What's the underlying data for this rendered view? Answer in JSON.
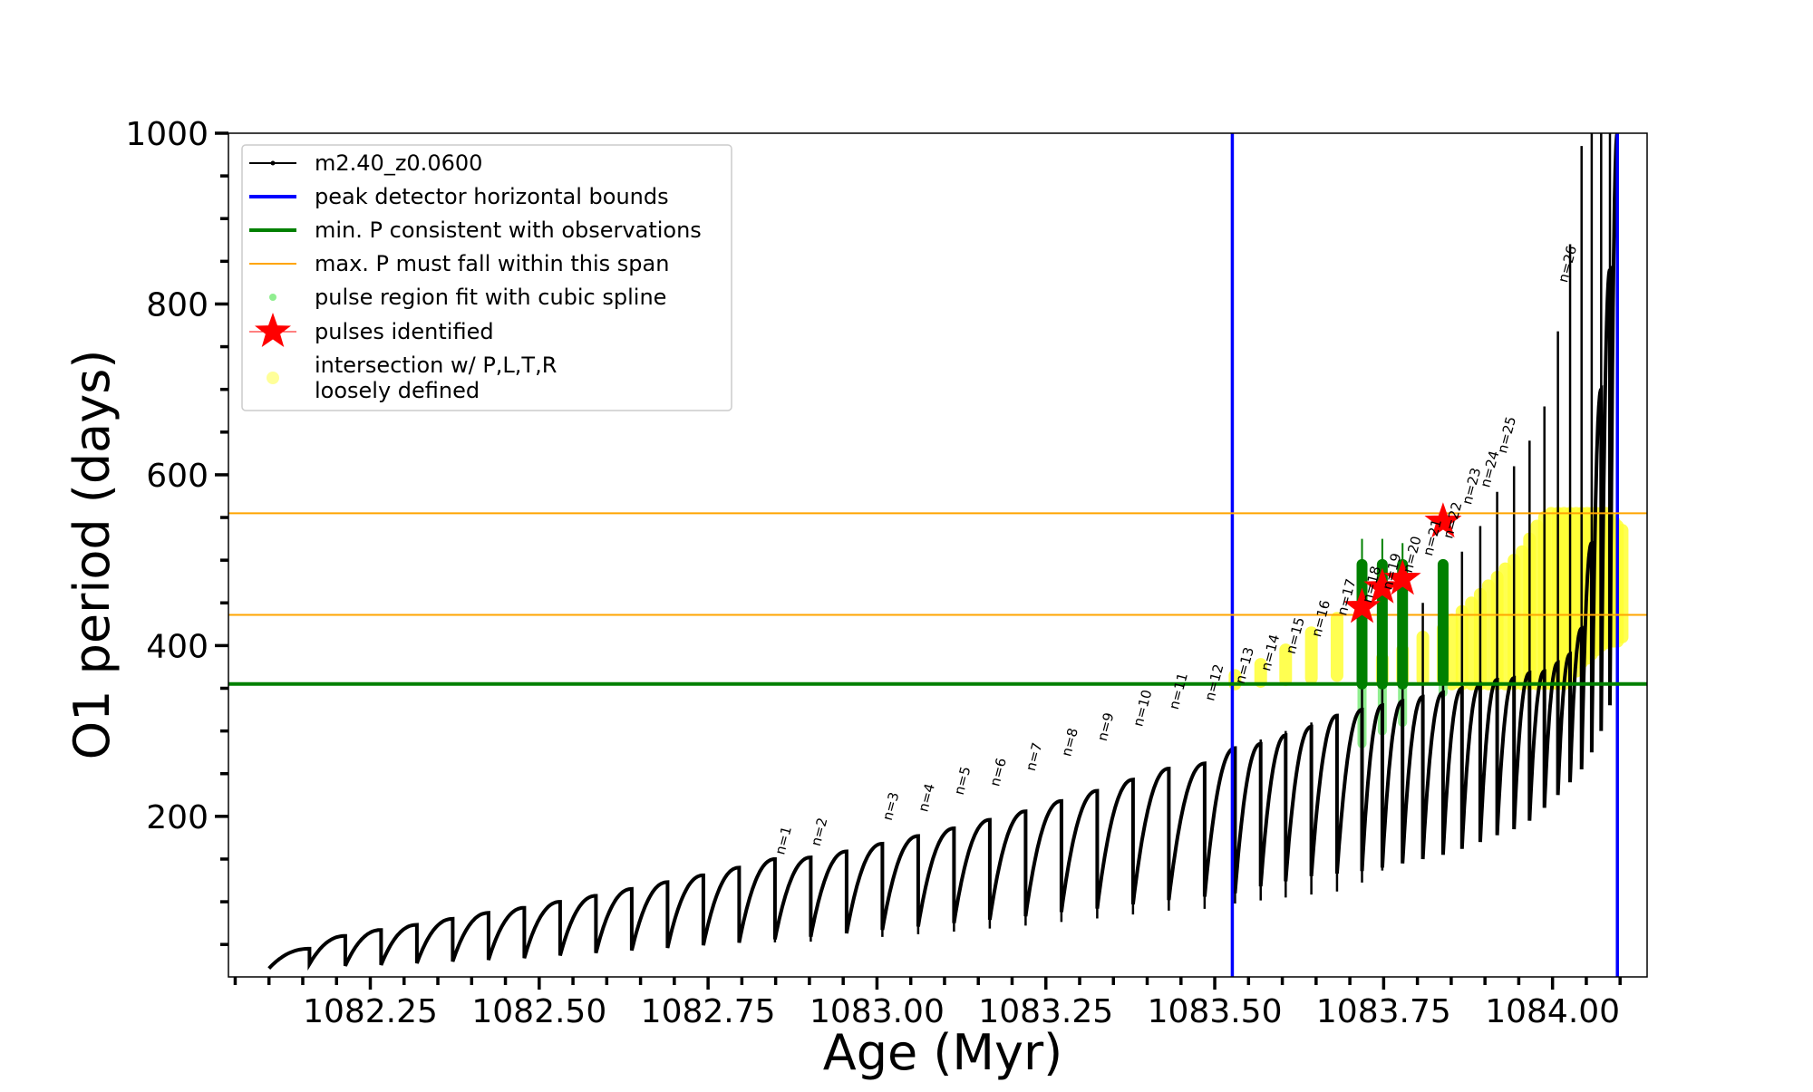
{
  "chart_data": {
    "type": "line",
    "xlabel": "Age (Myr)",
    "ylabel": "O1 period (days)",
    "xlim": [
      1082.04,
      1084.14
    ],
    "ylim": [
      12,
      1000
    ],
    "xticks": [
      1082.25,
      1082.5,
      1082.75,
      1083.0,
      1083.25,
      1083.5,
      1083.75,
      1084.0
    ],
    "xtick_labels": [
      "1082.25",
      "1082.50",
      "1082.75",
      "1083.00",
      "1083.25",
      "1083.50",
      "1083.75",
      "1084.00"
    ],
    "yticks": [
      200,
      400,
      600,
      800,
      1000
    ],
    "ytick_labels": [
      "200",
      "400",
      "600",
      "800",
      "1000"
    ],
    "legend_position": "top-left",
    "legend": [
      {
        "label": "m2.40_z0.0600",
        "color": "#000000",
        "kind": "line-marker"
      },
      {
        "label": "peak detector horizontal bounds",
        "color": "#0000ff",
        "kind": "line"
      },
      {
        "label": "min. P consistent with observations",
        "color": "#008000",
        "kind": "line"
      },
      {
        "label": "max. P must fall within this span",
        "color": "#ffa500",
        "kind": "thin-line"
      },
      {
        "label": "pulse region fit with cubic spline",
        "color": "#90ee90",
        "kind": "dot"
      },
      {
        "label": "pulses identified",
        "color": "#ff0000",
        "kind": "star"
      },
      {
        "label": "intersection w/ P,L,T,R",
        "label2": "loosely defined",
        "color": "#ffff99",
        "kind": "big-dot"
      }
    ],
    "vertical_lines": [
      {
        "x": 1083.526,
        "color": "#0000ff",
        "name": "peak detector horizontal bounds"
      },
      {
        "x": 1084.096,
        "color": "#0000ff",
        "name": "peak detector horizontal bounds"
      }
    ],
    "horizontal_lines": [
      {
        "y": 355,
        "color": "#008000",
        "name": "min. P consistent with observations"
      },
      {
        "y": 436,
        "color": "#ffa500",
        "name": "max. P lower bound"
      },
      {
        "y": 555,
        "color": "#ffa500",
        "name": "max. P upper bound"
      }
    ],
    "series": [
      {
        "name": "m2.40_z0.0600",
        "color": "#000000",
        "pulse_cycles": [
          {
            "start": 1082.1,
            "end": 1082.16,
            "min": 22,
            "max": 45
          },
          {
            "start": 1082.16,
            "end": 1082.213,
            "min": 27,
            "max": 60
          },
          {
            "start": 1082.213,
            "end": 1082.266,
            "min": 25,
            "max": 67
          },
          {
            "start": 1082.266,
            "end": 1082.319,
            "min": 26,
            "max": 73
          },
          {
            "start": 1082.319,
            "end": 1082.372,
            "min": 28,
            "max": 80
          },
          {
            "start": 1082.372,
            "end": 1082.425,
            "min": 30,
            "max": 87
          },
          {
            "start": 1082.425,
            "end": 1082.478,
            "min": 32,
            "max": 93
          },
          {
            "start": 1082.478,
            "end": 1082.531,
            "min": 34,
            "max": 100
          },
          {
            "start": 1082.531,
            "end": 1082.584,
            "min": 37,
            "max": 107
          },
          {
            "start": 1082.584,
            "end": 1082.637,
            "min": 40,
            "max": 115
          },
          {
            "start": 1082.637,
            "end": 1082.69,
            "min": 43,
            "max": 123
          },
          {
            "start": 1082.69,
            "end": 1082.743,
            "min": 46,
            "max": 131
          },
          {
            "start": 1082.743,
            "end": 1082.796,
            "min": 49,
            "max": 140
          },
          {
            "start": 1082.796,
            "end": 1082.849,
            "min": 52,
            "max": 150
          },
          {
            "start": 1082.849,
            "end": 1082.902,
            "min": 56,
            "max": 152
          },
          {
            "start": 1082.902,
            "end": 1082.955,
            "min": 59,
            "max": 159
          },
          {
            "start": 1082.955,
            "end": 1083.008,
            "min": 63,
            "max": 168
          },
          {
            "start": 1083.008,
            "end": 1083.061,
            "min": 67,
            "max": 177
          },
          {
            "start": 1083.061,
            "end": 1083.114,
            "min": 71,
            "max": 186
          },
          {
            "start": 1083.114,
            "end": 1083.167,
            "min": 75,
            "max": 196
          },
          {
            "start": 1083.167,
            "end": 1083.22,
            "min": 79,
            "max": 206
          },
          {
            "start": 1083.22,
            "end": 1083.273,
            "min": 83,
            "max": 218
          },
          {
            "start": 1083.273,
            "end": 1083.326,
            "min": 88,
            "max": 230
          },
          {
            "start": 1083.326,
            "end": 1083.379,
            "min": 92,
            "max": 243
          },
          {
            "start": 1083.379,
            "end": 1083.432,
            "min": 97,
            "max": 256
          },
          {
            "start": 1083.432,
            "end": 1083.485,
            "min": 102,
            "max": 262
          },
          {
            "start": 1083.485,
            "end": 1083.53,
            "min": 106,
            "max": 280
          },
          {
            "start": 1083.53,
            "end": 1083.568,
            "min": 110,
            "max": 285
          },
          {
            "start": 1083.568,
            "end": 1083.605,
            "min": 118,
            "max": 295
          },
          {
            "start": 1083.605,
            "end": 1083.643,
            "min": 124,
            "max": 305
          },
          {
            "start": 1083.643,
            "end": 1083.681,
            "min": 130,
            "max": 318
          },
          {
            "start": 1083.681,
            "end": 1083.718,
            "min": 133,
            "max": 325
          },
          {
            "start": 1083.718,
            "end": 1083.748,
            "min": 136,
            "max": 330
          },
          {
            "start": 1083.748,
            "end": 1083.778,
            "min": 140,
            "max": 335
          },
          {
            "start": 1083.778,
            "end": 1083.808,
            "min": 145,
            "max": 340
          },
          {
            "start": 1083.808,
            "end": 1083.838,
            "min": 150,
            "max": 345
          },
          {
            "start": 1083.838,
            "end": 1083.866,
            "min": 155,
            "max": 350
          },
          {
            "start": 1083.866,
            "end": 1083.893,
            "min": 162,
            "max": 355
          },
          {
            "start": 1083.893,
            "end": 1083.918,
            "min": 170,
            "max": 360
          },
          {
            "start": 1083.918,
            "end": 1083.943,
            "min": 178,
            "max": 362
          },
          {
            "start": 1083.943,
            "end": 1083.966,
            "min": 185,
            "max": 368
          },
          {
            "start": 1083.966,
            "end": 1083.988,
            "min": 195,
            "max": 370
          },
          {
            "start": 1083.988,
            "end": 1084.008,
            "min": 210,
            "max": 380
          },
          {
            "start": 1084.008,
            "end": 1084.026,
            "min": 225,
            "max": 390
          },
          {
            "start": 1084.026,
            "end": 1084.043,
            "min": 240,
            "max": 420
          },
          {
            "start": 1084.043,
            "end": 1084.058,
            "min": 255,
            "max": 520
          },
          {
            "start": 1084.058,
            "end": 1084.072,
            "min": 275,
            "max": 700
          },
          {
            "start": 1084.072,
            "end": 1084.085,
            "min": 300,
            "max": 840
          },
          {
            "start": 1084.085,
            "end": 1084.096,
            "min": 330,
            "max": 1000
          }
        ],
        "spikes": [
          {
            "x": 1082.849,
            "top": 150
          },
          {
            "x": 1082.902,
            "top": 152
          },
          {
            "x": 1083.008,
            "top": 168
          },
          {
            "x": 1083.061,
            "top": 177
          },
          {
            "x": 1083.114,
            "top": 186
          },
          {
            "x": 1083.167,
            "top": 196
          },
          {
            "x": 1083.22,
            "top": 206
          },
          {
            "x": 1083.273,
            "top": 218
          },
          {
            "x": 1083.326,
            "top": 230
          },
          {
            "x": 1083.379,
            "top": 243
          },
          {
            "x": 1083.432,
            "top": 256
          },
          {
            "x": 1083.485,
            "top": 262
          },
          {
            "x": 1083.53,
            "top": 280
          },
          {
            "x": 1083.568,
            "top": 290
          },
          {
            "x": 1083.605,
            "top": 300
          },
          {
            "x": 1083.643,
            "top": 310
          },
          {
            "x": 1083.681,
            "top": 320
          },
          {
            "x": 1083.718,
            "top": 350
          },
          {
            "x": 1083.748,
            "top": 390
          },
          {
            "x": 1083.778,
            "top": 420
          },
          {
            "x": 1083.808,
            "top": 450
          },
          {
            "x": 1083.838,
            "top": 480
          },
          {
            "x": 1083.866,
            "top": 510
          },
          {
            "x": 1083.893,
            "top": 540
          },
          {
            "x": 1083.918,
            "top": 580
          },
          {
            "x": 1083.943,
            "top": 610
          },
          {
            "x": 1083.966,
            "top": 640
          },
          {
            "x": 1083.988,
            "top": 680
          },
          {
            "x": 1084.008,
            "top": 768
          },
          {
            "x": 1084.026,
            "top": 870
          },
          {
            "x": 1084.043,
            "top": 985
          },
          {
            "x": 1084.058,
            "top": 1000
          },
          {
            "x": 1084.072,
            "top": 1000
          },
          {
            "x": 1084.085,
            "top": 1000
          }
        ]
      }
    ],
    "pulse_labels": [
      {
        "x": 1082.849,
        "y": 150,
        "text": "n=1"
      },
      {
        "x": 1082.902,
        "y": 160,
        "text": "n=2"
      },
      {
        "x": 1083.008,
        "y": 190,
        "text": "n=3"
      },
      {
        "x": 1083.061,
        "y": 200,
        "text": "n=4"
      },
      {
        "x": 1083.114,
        "y": 220,
        "text": "n=5"
      },
      {
        "x": 1083.167,
        "y": 230,
        "text": "n=6"
      },
      {
        "x": 1083.22,
        "y": 248,
        "text": "n=7"
      },
      {
        "x": 1083.273,
        "y": 265,
        "text": "n=8"
      },
      {
        "x": 1083.326,
        "y": 283,
        "text": "n=9"
      },
      {
        "x": 1083.379,
        "y": 300,
        "text": "n=10"
      },
      {
        "x": 1083.432,
        "y": 320,
        "text": "n=11"
      },
      {
        "x": 1083.485,
        "y": 330,
        "text": "n=12"
      },
      {
        "x": 1083.53,
        "y": 350,
        "text": "n=13"
      },
      {
        "x": 1083.568,
        "y": 365,
        "text": "n=14"
      },
      {
        "x": 1083.605,
        "y": 385,
        "text": "n=15"
      },
      {
        "x": 1083.643,
        "y": 405,
        "text": "n=16"
      },
      {
        "x": 1083.681,
        "y": 430,
        "text": "n=17"
      },
      {
        "x": 1083.718,
        "y": 445,
        "text": "n=18"
      },
      {
        "x": 1083.748,
        "y": 460,
        "text": "n=19"
      },
      {
        "x": 1083.778,
        "y": 480,
        "text": "n=20"
      },
      {
        "x": 1083.808,
        "y": 500,
        "text": "n=21"
      },
      {
        "x": 1083.838,
        "y": 520,
        "text": "n=22"
      },
      {
        "x": 1083.866,
        "y": 560,
        "text": "n=23"
      },
      {
        "x": 1083.893,
        "y": 580,
        "text": "n=24"
      },
      {
        "x": 1083.918,
        "y": 620,
        "text": "n=25"
      },
      {
        "x": 1084.008,
        "y": 820,
        "text": "n=26"
      }
    ],
    "yellow_regions": [
      {
        "x": 1083.53,
        "ymin": 355,
        "ymax": 365
      },
      {
        "x": 1083.568,
        "ymin": 358,
        "ymax": 378
      },
      {
        "x": 1083.605,
        "ymin": 360,
        "ymax": 395
      },
      {
        "x": 1083.643,
        "ymin": 362,
        "ymax": 415
      },
      {
        "x": 1083.681,
        "ymin": 365,
        "ymax": 432
      },
      {
        "x": 1083.748,
        "ymin": 360,
        "ymax": 385
      },
      {
        "x": 1083.778,
        "ymin": 360,
        "ymax": 395
      },
      {
        "x": 1083.808,
        "ymin": 360,
        "ymax": 410
      },
      {
        "x": 1083.838,
        "ymin": 360,
        "ymax": 420
      },
      {
        "x": 1083.851,
        "ymin": 355,
        "ymax": 430
      },
      {
        "x": 1083.866,
        "ymin": 355,
        "ymax": 440
      },
      {
        "x": 1083.88,
        "ymin": 355,
        "ymax": 450
      },
      {
        "x": 1083.893,
        "ymin": 355,
        "ymax": 460
      },
      {
        "x": 1083.905,
        "ymin": 355,
        "ymax": 470
      },
      {
        "x": 1083.918,
        "ymin": 355,
        "ymax": 480
      },
      {
        "x": 1083.93,
        "ymin": 355,
        "ymax": 490
      },
      {
        "x": 1083.943,
        "ymin": 355,
        "ymax": 500
      },
      {
        "x": 1083.955,
        "ymin": 355,
        "ymax": 510
      },
      {
        "x": 1083.966,
        "ymin": 355,
        "ymax": 525
      },
      {
        "x": 1083.977,
        "ymin": 355,
        "ymax": 540
      },
      {
        "x": 1083.988,
        "ymin": 355,
        "ymax": 550
      },
      {
        "x": 1083.998,
        "ymin": 355,
        "ymax": 555
      },
      {
        "x": 1084.008,
        "ymin": 355,
        "ymax": 555
      },
      {
        "x": 1084.017,
        "ymin": 355,
        "ymax": 555
      },
      {
        "x": 1084.026,
        "ymin": 360,
        "ymax": 555
      },
      {
        "x": 1084.035,
        "ymin": 370,
        "ymax": 555
      },
      {
        "x": 1084.043,
        "ymin": 380,
        "ymax": 555
      },
      {
        "x": 1084.051,
        "ymin": 385,
        "ymax": 555
      },
      {
        "x": 1084.058,
        "ymin": 390,
        "ymax": 555
      },
      {
        "x": 1084.065,
        "ymin": 395,
        "ymax": 555
      },
      {
        "x": 1084.072,
        "ymin": 400,
        "ymax": 555
      },
      {
        "x": 1084.079,
        "ymin": 403,
        "ymax": 555
      },
      {
        "x": 1084.085,
        "ymin": 405,
        "ymax": 550
      },
      {
        "x": 1084.091,
        "ymin": 405,
        "ymax": 545
      },
      {
        "x": 1084.096,
        "ymin": 405,
        "ymax": 540
      },
      {
        "x": 1084.103,
        "ymin": 410,
        "ymax": 535
      }
    ],
    "green_spline_regions": [
      {
        "x": 1083.718,
        "ymin": 285,
        "ymax": 495,
        "dark_min": 355,
        "dark_max": 495,
        "whisker_top": 525
      },
      {
        "x": 1083.748,
        "ymin": 300,
        "ymax": 495,
        "dark_min": 355,
        "dark_max": 495,
        "whisker_top": 525
      },
      {
        "x": 1083.778,
        "ymin": 310,
        "ymax": 495,
        "dark_min": 355,
        "dark_max": 495,
        "whisker_top": 520
      },
      {
        "x": 1083.838,
        "ymin": 345,
        "ymax": 495,
        "dark_min": 360,
        "dark_max": 495,
        "whisker_top": 500
      }
    ],
    "stars": [
      {
        "x": 1083.718,
        "y": 445
      },
      {
        "x": 1083.748,
        "y": 468
      },
      {
        "x": 1083.778,
        "y": 478
      },
      {
        "x": 1083.838,
        "y": 545
      }
    ]
  }
}
